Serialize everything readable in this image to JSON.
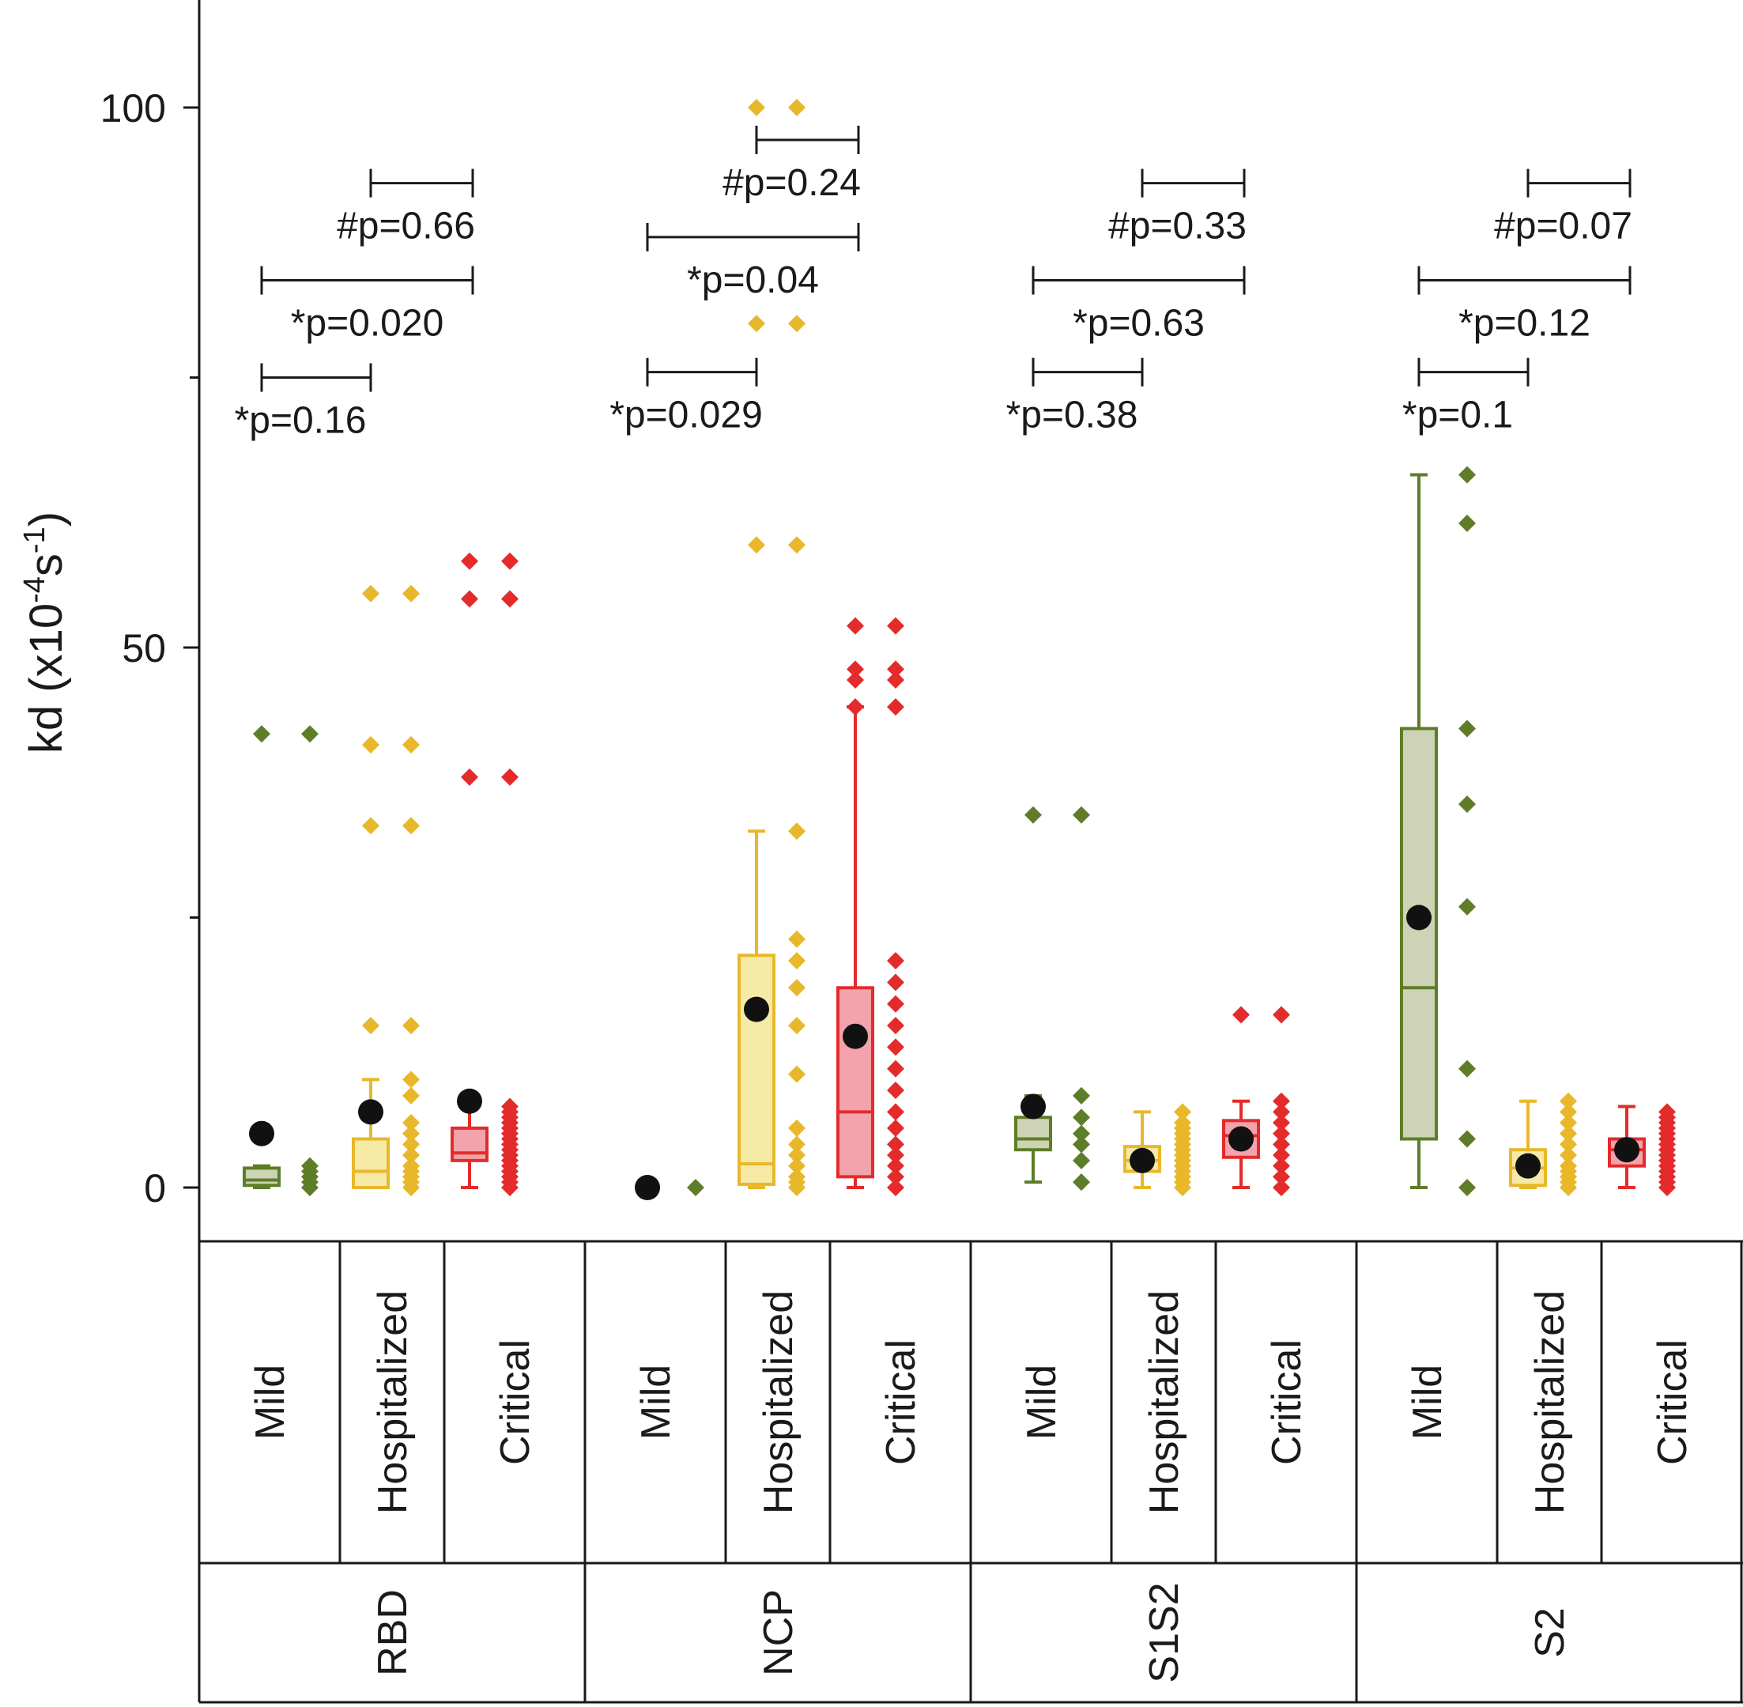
{
  "chart_data": {
    "type": "box",
    "ylabel_parts": {
      "base": "kd (x10",
      "exp1": "-4",
      "mid": "s",
      "exp2": "-1",
      "end": ")"
    },
    "ylim": [
      -5,
      107
    ],
    "yticks": [
      0,
      50,
      100
    ],
    "tick_labels": [
      "0",
      "50",
      "100"
    ],
    "minor_ticks": [
      25,
      75
    ],
    "colors": {
      "mild": {
        "line": "#5e7d28",
        "fill": "#cdd3b4",
        "point": "#5e7d28"
      },
      "hospitalized": {
        "line": "#e8b82a",
        "fill": "#f6eaa6",
        "point": "#e8b82a"
      },
      "critical": {
        "line": "#e42b2b",
        "fill": "#f2a3ab",
        "point": "#e42b2b"
      },
      "mean": "#111111",
      "axis": "#1a1a1a"
    },
    "antigens": [
      {
        "name": "RBD",
        "groups": [
          {
            "label": "Mild",
            "severity": "mild",
            "box": {
              "q1": 0.2,
              "median": 0.7,
              "q3": 1.8,
              "whisker_low": 0,
              "whisker_high": 2
            },
            "mean": 5,
            "outliers": [
              42
            ],
            "points": [
              0,
              0.5,
              1,
              1.5,
              2
            ]
          },
          {
            "label": "Hospitalized",
            "severity": "hospitalized",
            "box": {
              "q1": 0,
              "median": 1.5,
              "q3": 4.5,
              "whisker_low": 0,
              "whisker_high": 10
            },
            "mean": 7,
            "outliers": [
              55,
              41,
              33.5,
              15
            ],
            "points": [
              0,
              0.5,
              1,
              1.5,
              2,
              3,
              4,
              5,
              6,
              8.5,
              10
            ]
          },
          {
            "label": "Critical",
            "severity": "critical",
            "box": {
              "q1": 2.5,
              "median": 3.2,
              "q3": 5.5,
              "whisker_low": 0,
              "whisker_high": 8
            },
            "mean": 8,
            "outliers": [
              58,
              54.5,
              38
            ],
            "points": [
              0,
              0.5,
              1,
              1.5,
              2,
              2.5,
              3,
              3.5,
              4,
              4.5,
              5,
              5.5,
              6,
              6.5,
              7,
              7.5
            ]
          }
        ],
        "comparisons": [
          {
            "label": "*p=0.16",
            "from": 0,
            "to": 1,
            "y": 75
          },
          {
            "label": "*p=0.020",
            "from": 0,
            "to": 2,
            "y": 84
          },
          {
            "label": "#p=0.66",
            "from": 1,
            "to": 2,
            "y": 93
          }
        ]
      },
      {
        "name": "NCP",
        "groups": [
          {
            "label": "Mild",
            "severity": "mild",
            "box": null,
            "mean": 0,
            "outliers": [],
            "points": [
              0
            ]
          },
          {
            "label": "Hospitalized",
            "severity": "hospitalized",
            "box": {
              "q1": 0.3,
              "median": 2.2,
              "q3": 21.5,
              "whisker_low": 0,
              "whisker_high": 33
            },
            "mean": 16.5,
            "outliers": [
              100,
              80,
              59.5
            ],
            "points": [
              0,
              0.5,
              1,
              2,
              3,
              4,
              5.5,
              10.5,
              15,
              18.5,
              21,
              23,
              33
            ]
          },
          {
            "label": "Critical",
            "severity": "critical",
            "box": {
              "q1": 1,
              "median": 7,
              "q3": 18.5,
              "whisker_low": 0,
              "whisker_high": 44.5
            },
            "mean": 14,
            "outliers": [
              52,
              48,
              47,
              44.5
            ],
            "points": [
              0,
              1,
              2,
              3,
              4,
              5.5,
              7,
              9,
              11,
              13,
              15,
              17,
              19,
              21
            ]
          }
        ],
        "comparisons": [
          {
            "label": "*p=0.029",
            "from": 0,
            "to": 1,
            "y": 75.5
          },
          {
            "label": "*p=0.04",
            "from": 0,
            "to": 2,
            "y": 88
          },
          {
            "label": "#p=0.24",
            "from": 1,
            "to": 2,
            "y": 97
          }
        ]
      },
      {
        "name": "S1S2",
        "groups": [
          {
            "label": "Mild",
            "severity": "mild",
            "box": {
              "q1": 3.5,
              "median": 4.5,
              "q3": 6.5,
              "whisker_low": 0.5,
              "whisker_high": 8.5
            },
            "mean": 7.5,
            "outliers": [
              34.5
            ],
            "points": [
              0.5,
              2.5,
              4,
              5,
              6.5,
              8.5
            ]
          },
          {
            "label": "Hospitalized",
            "severity": "hospitalized",
            "box": {
              "q1": 1.5,
              "median": 2.5,
              "q3": 3.8,
              "whisker_low": 0,
              "whisker_high": 7
            },
            "mean": 2.5,
            "outliers": [],
            "points": [
              0,
              0.5,
              1,
              1.5,
              2,
              2.5,
              3,
              3.5,
              4,
              4.5,
              5,
              5.5,
              6,
              7
            ]
          },
          {
            "label": "Critical",
            "severity": "critical",
            "box": {
              "q1": 2.8,
              "median": 4.8,
              "q3": 6.2,
              "whisker_low": 0,
              "whisker_high": 8
            },
            "mean": 4.5,
            "outliers": [
              16
            ],
            "points": [
              0,
              1,
              2,
              3,
              4,
              5,
              6,
              7,
              8
            ]
          }
        ],
        "comparisons": [
          {
            "label": "*p=0.38",
            "from": 0,
            "to": 1,
            "y": 75.5
          },
          {
            "label": "*p=0.63",
            "from": 0,
            "to": 2,
            "y": 84
          },
          {
            "label": "#p=0.33",
            "from": 1,
            "to": 2,
            "y": 93
          }
        ]
      },
      {
        "name": "S2",
        "groups": [
          {
            "label": "Mild",
            "severity": "mild",
            "box": {
              "q1": 4.5,
              "median": 18.5,
              "q3": 42.5,
              "whisker_low": 0,
              "whisker_high": 66
            },
            "mean": 25,
            "outliers": [],
            "points": [
              0,
              4.5,
              11,
              26,
              35.5,
              42.5,
              61.5,
              66
            ]
          },
          {
            "label": "Hospitalized",
            "severity": "hospitalized",
            "box": {
              "q1": 0.2,
              "median": 1.8,
              "q3": 3.5,
              "whisker_low": 0,
              "whisker_high": 8
            },
            "mean": 2,
            "outliers": [],
            "points": [
              0,
              0.5,
              1,
              1.5,
              2,
              3,
              4,
              5,
              6,
              7,
              8
            ]
          },
          {
            "label": "Critical",
            "severity": "critical",
            "box": {
              "q1": 2,
              "median": 3.5,
              "q3": 4.5,
              "whisker_low": 0,
              "whisker_high": 7.5
            },
            "mean": 3.5,
            "outliers": [],
            "points": [
              0,
              0.5,
              1,
              1.5,
              2,
              2.5,
              3,
              3.5,
              4,
              4.5,
              5,
              5.5,
              6,
              6.5,
              7
            ]
          }
        ],
        "comparisons": [
          {
            "label": "*p=0.1",
            "from": 0,
            "to": 1,
            "y": 75.5
          },
          {
            "label": "*p=0.12",
            "from": 0,
            "to": 2,
            "y": 84
          },
          {
            "label": "#p=0.07",
            "from": 1,
            "to": 2,
            "y": 93
          }
        ]
      }
    ]
  }
}
